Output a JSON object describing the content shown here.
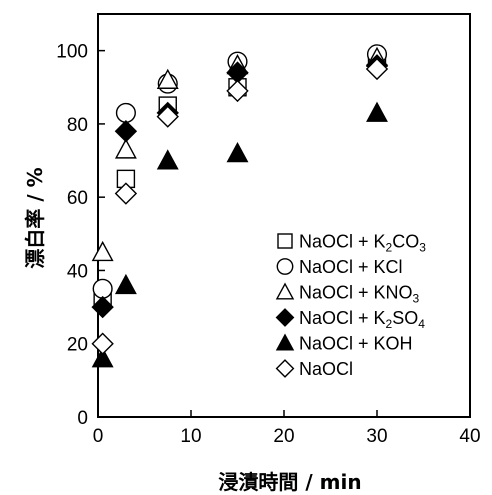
{
  "chart_data": {
    "type": "scatter",
    "xlabel": "浸漬時間 / min",
    "ylabel": "漂白率 / %",
    "xlim": [
      0,
      40
    ],
    "ylim": [
      0,
      110
    ],
    "xticks": [
      0,
      10,
      20,
      30,
      40
    ],
    "yticks": [
      0,
      20,
      40,
      60,
      80,
      100
    ],
    "grid": false,
    "legend_position": "bottom-right",
    "series": [
      {
        "name": "NaOCl + K2CO3",
        "label_parts": [
          [
            "NaOCl + K",
            ""
          ],
          [
            "2",
            "sub"
          ],
          [
            "CO",
            ""
          ],
          [
            "3",
            "sub"
          ]
        ],
        "marker": "square-open",
        "points": [
          [
            0.5,
            33
          ],
          [
            3,
            65
          ],
          [
            7.5,
            85
          ],
          [
            15,
            90
          ],
          [
            30,
            97
          ]
        ]
      },
      {
        "name": "NaOCl + KCl",
        "label_parts": [
          [
            "NaOCl + KCl",
            ""
          ]
        ],
        "marker": "circle-open",
        "points": [
          [
            0.5,
            35
          ],
          [
            3,
            83
          ],
          [
            7.5,
            91
          ],
          [
            15,
            97
          ],
          [
            30,
            99
          ]
        ]
      },
      {
        "name": "NaOCl + KNO3",
        "label_parts": [
          [
            "NaOCl + KNO",
            ""
          ],
          [
            "3",
            "sub"
          ]
        ],
        "marker": "triangle-open",
        "points": [
          [
            0.5,
            45
          ],
          [
            3,
            73
          ],
          [
            7.5,
            92
          ],
          [
            15,
            96
          ],
          [
            30,
            98
          ]
        ]
      },
      {
        "name": "NaOCl + K2SO4",
        "label_parts": [
          [
            "NaOCl + K",
            ""
          ],
          [
            "2",
            "sub"
          ],
          [
            "SO",
            ""
          ],
          [
            "4",
            "sub"
          ]
        ],
        "marker": "diamond-filled",
        "points": [
          [
            0.5,
            30
          ],
          [
            3,
            78
          ],
          [
            7.5,
            83
          ],
          [
            15,
            94
          ],
          [
            30,
            96
          ]
        ]
      },
      {
        "name": "NaOCl + KOH",
        "label_parts": [
          [
            "NaOCl + KOH",
            ""
          ]
        ],
        "marker": "triangle-filled",
        "points": [
          [
            0.5,
            16
          ],
          [
            3,
            36
          ],
          [
            7.5,
            70
          ],
          [
            15,
            72
          ],
          [
            30,
            83
          ]
        ]
      },
      {
        "name": "NaOCl",
        "label_parts": [
          [
            "NaOCl",
            ""
          ]
        ],
        "marker": "diamond-open",
        "points": [
          [
            0.5,
            20
          ],
          [
            3,
            61
          ],
          [
            7.5,
            82
          ],
          [
            15,
            89
          ],
          [
            30,
            95
          ]
        ]
      }
    ]
  }
}
